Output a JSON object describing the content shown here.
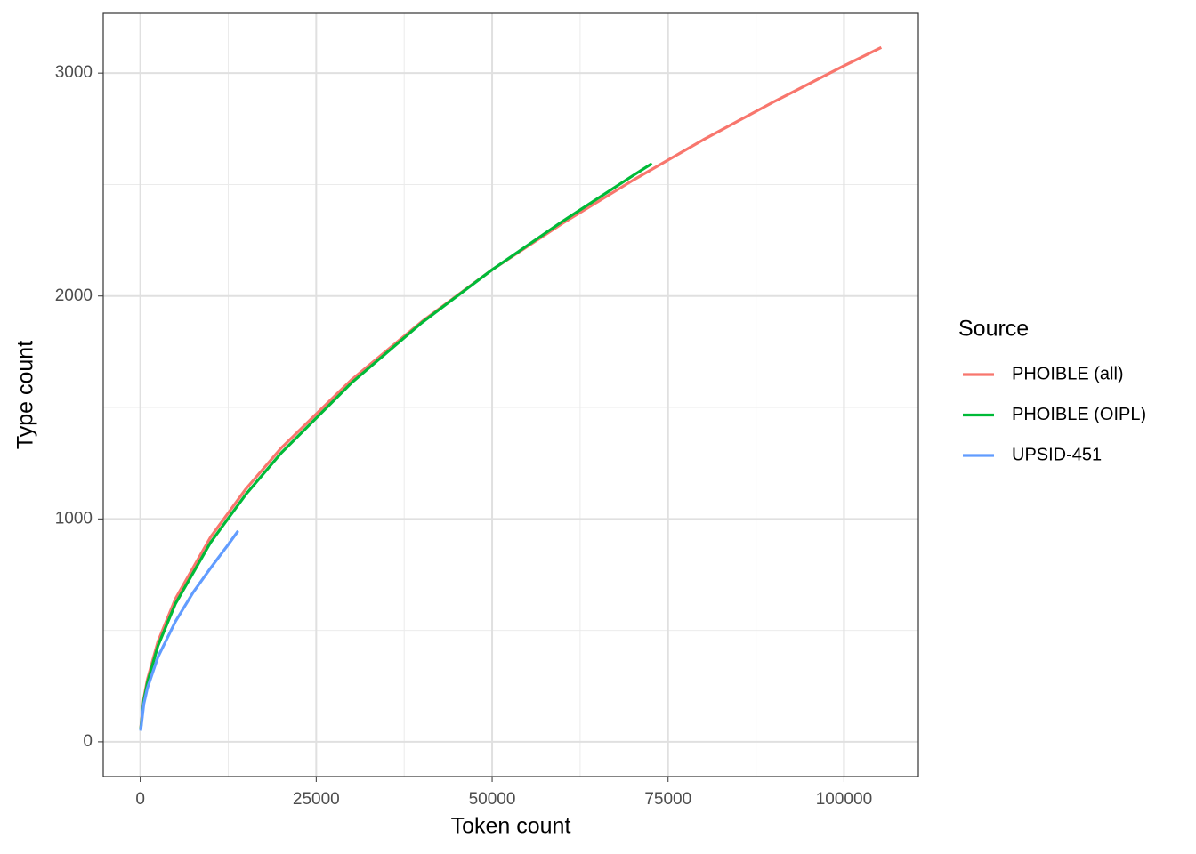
{
  "chart_data": {
    "type": "line",
    "x_label": "Token count",
    "y_label": "Type count",
    "legend_title": "Source",
    "legend_position": "right",
    "xlim": [
      -5265,
      110565
    ],
    "ylim": [
      -156,
      3268
    ],
    "xticks": [
      0,
      25000,
      50000,
      75000,
      100000
    ],
    "yticks": [
      0,
      1000,
      2000,
      3000
    ],
    "xminor": [
      12500,
      37500,
      62500,
      87500
    ],
    "yminor": [
      500,
      1500,
      2500
    ],
    "grid": true,
    "series": [
      {
        "name": "PHOIBLE (all)",
        "color": "#F8766D",
        "x": [
          50,
          500,
          1000,
          2500,
          5000,
          10000,
          15000,
          20000,
          30000,
          40000,
          50000,
          60000,
          70000,
          80000,
          90000,
          100000,
          105300
        ],
        "values": [
          59,
          195,
          279,
          449,
          642,
          919,
          1134,
          1317,
          1624,
          1885,
          2118,
          2326,
          2519,
          2701,
          2871,
          3033,
          3115
        ]
      },
      {
        "name": "PHOIBLE (OIPL)",
        "color": "#00BA38",
        "x": [
          50,
          500,
          1000,
          2500,
          5000,
          10000,
          15000,
          20000,
          30000,
          40000,
          50000,
          60000,
          70000,
          72700
        ],
        "values": [
          55,
          185,
          265,
          430,
          620,
          895,
          1110,
          1295,
          1610,
          1880,
          2118,
          2335,
          2540,
          2594
        ]
      },
      {
        "name": "UPSID-451",
        "color": "#619CFF",
        "x": [
          50,
          500,
          1000,
          2500,
          5000,
          7500,
          10000,
          12500,
          13900
        ],
        "values": [
          50,
          170,
          240,
          380,
          540,
          670,
          780,
          885,
          946
        ]
      }
    ]
  }
}
